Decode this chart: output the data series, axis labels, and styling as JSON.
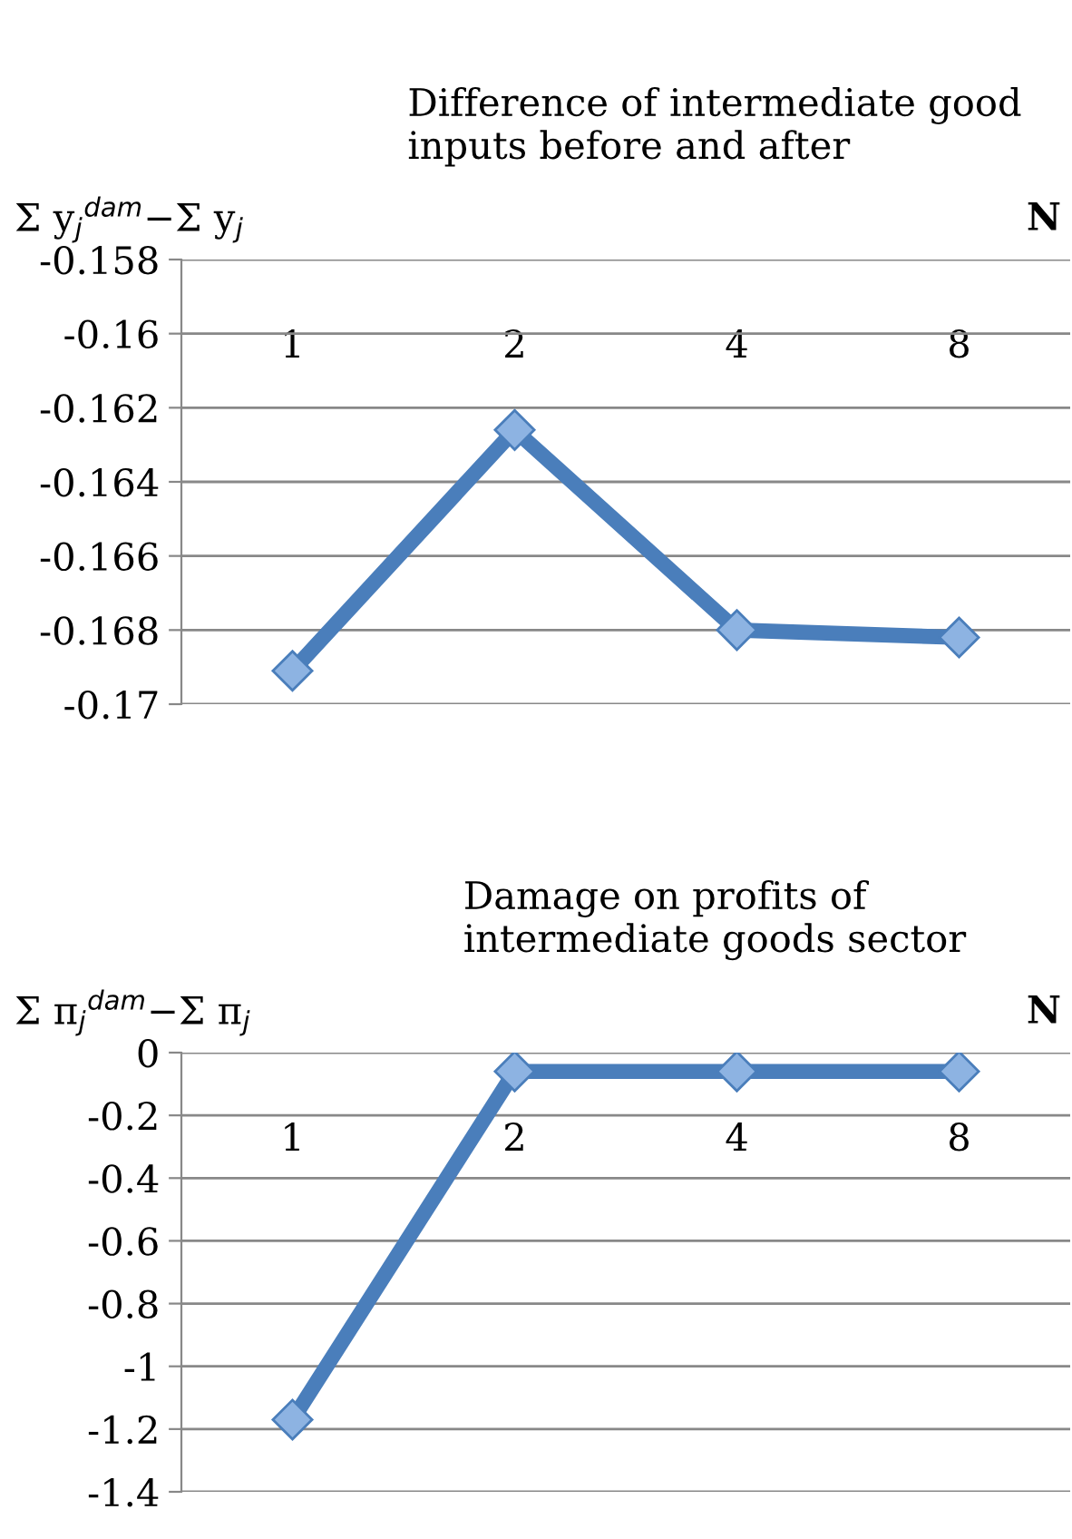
{
  "chart_data": [
    {
      "type": "line",
      "title": "Difference of intermediate good\ninputs before and after",
      "ylabel": "Σ y$_{j}$$^{dam}$−Σ y$_{j}$",
      "xlabel": "N",
      "categories": [
        "1",
        "2",
        "4",
        "8"
      ],
      "series": [
        {
          "color": "#4a7ebb",
          "values": [
            -0.1691,
            -0.1626,
            -0.168,
            -0.1682
          ]
        }
      ],
      "ylim": [
        -0.17,
        -0.158
      ],
      "yticks": [
        -0.17,
        -0.168,
        -0.166,
        -0.164,
        -0.162,
        -0.16,
        -0.158
      ],
      "grid": "y",
      "marker": "diamond",
      "line_style": "solid"
    },
    {
      "type": "line",
      "title": "Damage on profits of\nintermediate goods sector",
      "ylabel": "Σ π$_{j}$$^{dam}$−Σ π$_{j}$",
      "xlabel": "N",
      "categories": [
        "1",
        "2",
        "4",
        "8"
      ],
      "series": [
        {
          "color": "#4a7ebb",
          "values": [
            -1.17,
            -0.06,
            -0.06,
            -0.06
          ]
        }
      ],
      "ylim": [
        -1.4,
        0
      ],
      "yticks": [
        -1.4,
        -1.2,
        -1,
        -0.8,
        -0.6,
        -0.4,
        -0.2,
        0
      ],
      "grid": "y",
      "marker": "diamond",
      "line_style": "solid"
    }
  ]
}
